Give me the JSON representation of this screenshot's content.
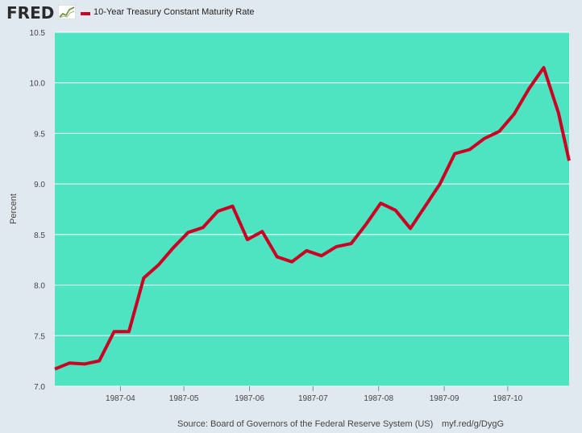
{
  "header": {
    "logo_text": "FRED",
    "logo_icon": "fred-graph-icon",
    "legend_label": "10-Year Treasury Constant Maturity Rate",
    "legend_color": "#cc0022"
  },
  "footer": {
    "source": "Source: Board of Governors of the Federal Reserve System (US)",
    "link": "myf.red/g/DygG"
  },
  "chart_data": {
    "type": "line",
    "title": "",
    "xlabel": "",
    "ylabel": "Percent",
    "ylim": [
      7.0,
      10.5
    ],
    "xlim": [
      "1987-03-01",
      "1987-10-30"
    ],
    "grid": "horizontal",
    "plot_background": "#4ee3c1",
    "yticks": [
      "7.0",
      "7.5",
      "8.0",
      "8.5",
      "9.0",
      "9.5",
      "10.0",
      "10.5"
    ],
    "xticks": [
      {
        "label": "1987-04",
        "date": "1987-04-01"
      },
      {
        "label": "1987-05",
        "date": "1987-05-01"
      },
      {
        "label": "1987-06",
        "date": "1987-06-01"
      },
      {
        "label": "1987-07",
        "date": "1987-07-01"
      },
      {
        "label": "1987-08",
        "date": "1987-08-01"
      },
      {
        "label": "1987-09",
        "date": "1987-09-01"
      },
      {
        "label": "1987-10",
        "date": "1987-10-01"
      }
    ],
    "series": [
      {
        "name": "10-Year Treasury Constant Maturity Rate",
        "color": "#cc0022",
        "x": [
          "1987-03-01",
          "1987-03-08",
          "1987-03-15",
          "1987-03-22",
          "1987-03-29",
          "1987-04-05",
          "1987-04-12",
          "1987-04-19",
          "1987-04-26",
          "1987-05-03",
          "1987-05-10",
          "1987-05-17",
          "1987-05-24",
          "1987-05-31",
          "1987-06-07",
          "1987-06-14",
          "1987-06-21",
          "1987-06-28",
          "1987-07-05",
          "1987-07-12",
          "1987-07-19",
          "1987-07-26",
          "1987-08-02",
          "1987-08-09",
          "1987-08-16",
          "1987-08-23",
          "1987-08-30",
          "1987-09-06",
          "1987-09-13",
          "1987-09-20",
          "1987-09-27",
          "1987-10-04",
          "1987-10-11",
          "1987-10-18",
          "1987-10-25",
          "1987-10-30"
        ],
        "values": [
          7.17,
          7.23,
          7.22,
          7.25,
          7.54,
          7.54,
          8.07,
          8.2,
          8.37,
          8.52,
          8.57,
          8.73,
          8.78,
          8.45,
          8.53,
          8.28,
          8.23,
          8.34,
          8.29,
          8.38,
          8.41,
          8.6,
          8.81,
          8.74,
          8.56,
          8.78,
          9.0,
          9.3,
          9.34,
          9.45,
          9.52,
          9.69,
          9.94,
          10.15,
          9.7,
          9.23
        ]
      }
    ]
  }
}
